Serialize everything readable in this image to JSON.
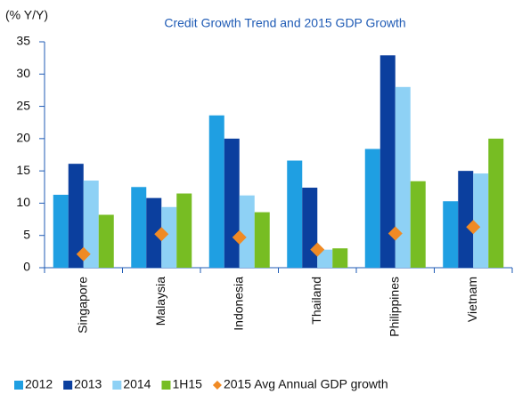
{
  "chart_data": {
    "type": "bar",
    "title": "Credit Growth Trend and 2015 GDP Growth",
    "y_label": "(% Y/Y)",
    "categories": [
      "Singapore",
      "Malaysia",
      "Indonesia",
      "Thailand",
      "Philippines",
      "Vietnam"
    ],
    "series": [
      {
        "name": "2012",
        "color": "#1f9fe2",
        "values": [
          11.3,
          12.5,
          23.6,
          16.6,
          18.4,
          10.3
        ]
      },
      {
        "name": "2013",
        "color": "#0b3f9e",
        "values": [
          16.1,
          10.8,
          20.0,
          12.4,
          32.9,
          15.0
        ]
      },
      {
        "name": "2014",
        "color": "#8ed1f5",
        "values": [
          13.5,
          9.4,
          11.2,
          2.8,
          28.0,
          14.6
        ]
      },
      {
        "name": "1H15",
        "color": "#77bd23",
        "values": [
          8.2,
          11.5,
          8.6,
          3.0,
          13.4,
          20.0
        ]
      },
      {
        "name": "2015 Avg Annual GDP growth",
        "color": "#f08a24",
        "marker": "diamond",
        "values": [
          2.1,
          5.2,
          4.7,
          2.8,
          5.3,
          6.3
        ]
      }
    ],
    "ylim": [
      0,
      35
    ],
    "yticks": [
      0,
      5,
      10,
      15,
      20,
      25,
      30,
      35
    ],
    "grid": false,
    "legend": "bottom"
  }
}
